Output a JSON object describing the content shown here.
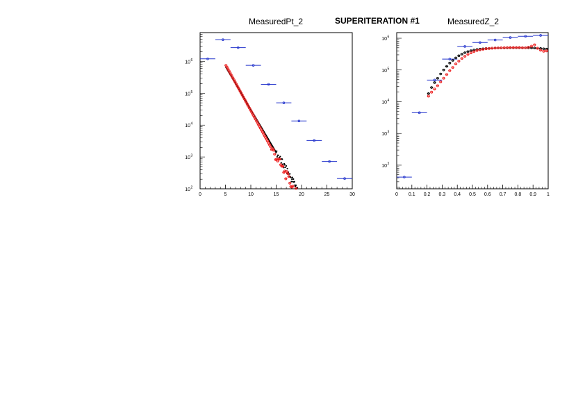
{
  "canvas": {
    "supertitle": "SUPERITERATION #1"
  },
  "colors": {
    "blue": "#2233cc",
    "black": "#000000",
    "red": "#ee2222"
  },
  "chart_data": [
    {
      "type": "scatter",
      "title": "MeasuredPt_2",
      "xlim": [
        0,
        30
      ],
      "ylim": [
        100,
        8000000
      ],
      "yscale": "log",
      "xticks": [
        "0",
        "5",
        "10",
        "15",
        "20",
        "25",
        "30"
      ],
      "yticks": [
        {
          "base": "10",
          "exp": "2",
          "v": 100
        },
        {
          "base": "10",
          "exp": "3",
          "v": 1000
        },
        {
          "base": "10",
          "exp": "4",
          "v": 10000
        },
        {
          "base": "10",
          "exp": "5",
          "v": 100000
        },
        {
          "base": "10",
          "exp": "6",
          "v": 1000000
        }
      ],
      "series": [
        {
          "color": "blue",
          "style": "errorx",
          "points": [
            [
              1.5,
              1200000,
              1.5
            ],
            [
              4.5,
              4800000,
              1.5
            ],
            [
              7.5,
              2700000,
              1.5
            ],
            [
              10.5,
              750000,
              1.5
            ],
            [
              13.5,
              190000,
              1.5
            ],
            [
              16.5,
              50000,
              1.5
            ],
            [
              19.5,
              13500,
              1.5
            ],
            [
              22.5,
              3300,
              1.5
            ],
            [
              25.5,
              720,
              1.5
            ],
            [
              28.5,
              210,
              1.5
            ]
          ]
        },
        {
          "color": "black",
          "style": "dots",
          "x_start": 5.1,
          "x_end": 20.0,
          "step": 0.1,
          "y_start": 650000,
          "slope": -0.27,
          "x_noise_from": 15,
          "noise": 0.12
        },
        {
          "color": "red",
          "style": "markers",
          "x_start": 5.1,
          "x_end": 19.8,
          "step": 0.2,
          "y_start": 750000,
          "slope": -0.29,
          "x_noise_from": 14,
          "noise": 0.15
        }
      ]
    },
    {
      "type": "scatter",
      "title": "MeasuredZ_2",
      "xlim": [
        0,
        1
      ],
      "ylim": [
        18,
        1500000
      ],
      "yscale": "log",
      "xticks": [
        "0",
        "0.1",
        "0.2",
        "0.3",
        "0.4",
        "0.5",
        "0.6",
        "0.7",
        "0.8",
        "0.9",
        "1"
      ],
      "yticks": [
        {
          "base": "10",
          "exp": "2",
          "v": 100
        },
        {
          "base": "10",
          "exp": "3",
          "v": 1000
        },
        {
          "base": "10",
          "exp": "4",
          "v": 10000
        },
        {
          "base": "10",
          "exp": "5",
          "v": 100000
        },
        {
          "base": "10",
          "exp": "6",
          "v": 1000000
        }
      ],
      "series": [
        {
          "color": "blue",
          "style": "errorx",
          "points": [
            [
              0.05,
              42,
              0.05
            ],
            [
              0.15,
              4500,
              0.05
            ],
            [
              0.25,
              48000,
              0.05
            ],
            [
              0.35,
              220000,
              0.05
            ],
            [
              0.45,
              550000,
              0.05
            ],
            [
              0.55,
              730000,
              0.05
            ],
            [
              0.65,
              880000,
              0.05
            ],
            [
              0.75,
              1050000,
              0.05
            ],
            [
              0.85,
              1150000,
              0.05
            ],
            [
              0.95,
              1230000,
              0.05
            ]
          ]
        },
        {
          "color": "black",
          "style": "errorx",
          "points": [
            [
              0.21,
              18000,
              0.01
            ],
            [
              0.23,
              28000,
              0.01
            ],
            [
              0.25,
              40000,
              0.01
            ],
            [
              0.27,
              55000,
              0.01
            ],
            [
              0.29,
              75000,
              0.01
            ],
            [
              0.31,
              100000,
              0.01
            ],
            [
              0.33,
              130000,
              0.01
            ],
            [
              0.35,
              165000,
              0.01
            ],
            [
              0.37,
              200000,
              0.01
            ],
            [
              0.39,
              240000,
              0.01
            ],
            [
              0.41,
              280000,
              0.01
            ],
            [
              0.43,
              315000,
              0.01
            ],
            [
              0.45,
              350000,
              0.01
            ],
            [
              0.47,
              380000,
              0.01
            ],
            [
              0.49,
              405000,
              0.01
            ],
            [
              0.51,
              425000,
              0.01
            ],
            [
              0.53,
              440000,
              0.01
            ],
            [
              0.55,
              455000,
              0.01
            ],
            [
              0.57,
              465000,
              0.01
            ],
            [
              0.59,
              475000,
              0.01
            ],
            [
              0.61,
              480000,
              0.01
            ],
            [
              0.63,
              485000,
              0.01
            ],
            [
              0.65,
              490000,
              0.01
            ],
            [
              0.67,
              492000,
              0.01
            ],
            [
              0.69,
              495000,
              0.01
            ],
            [
              0.71,
              497000,
              0.01
            ],
            [
              0.73,
              498000,
              0.01
            ],
            [
              0.75,
              500000,
              0.01
            ],
            [
              0.77,
              500000,
              0.01
            ],
            [
              0.79,
              500000,
              0.01
            ],
            [
              0.81,
              500000,
              0.01
            ],
            [
              0.83,
              500000,
              0.01
            ],
            [
              0.85,
              500000,
              0.01
            ],
            [
              0.87,
              498000,
              0.01
            ],
            [
              0.89,
              495000,
              0.01
            ],
            [
              0.91,
              490000,
              0.01
            ],
            [
              0.93,
              485000,
              0.01
            ],
            [
              0.95,
              475000,
              0.01
            ],
            [
              0.97,
              465000,
              0.01
            ],
            [
              0.99,
              455000,
              0.01
            ]
          ]
        },
        {
          "color": "red",
          "style": "markers",
          "points": [
            [
              0.21,
              15000
            ],
            [
              0.23,
              20000
            ],
            [
              0.25,
              25000
            ],
            [
              0.27,
              32000
            ],
            [
              0.29,
              42000
            ],
            [
              0.31,
              55000
            ],
            [
              0.33,
              72000
            ],
            [
              0.35,
              95000
            ],
            [
              0.37,
              120000
            ],
            [
              0.39,
              155000
            ],
            [
              0.41,
              190000
            ],
            [
              0.43,
              230000
            ],
            [
              0.45,
              270000
            ],
            [
              0.47,
              310000
            ],
            [
              0.49,
              345000
            ],
            [
              0.51,
              380000
            ],
            [
              0.53,
              410000
            ],
            [
              0.55,
              430000
            ],
            [
              0.57,
              450000
            ],
            [
              0.59,
              465000
            ],
            [
              0.61,
              475000
            ],
            [
              0.63,
              485000
            ],
            [
              0.65,
              490000
            ],
            [
              0.67,
              495000
            ],
            [
              0.69,
              498000
            ],
            [
              0.71,
              500000
            ],
            [
              0.73,
              502000
            ],
            [
              0.75,
              505000
            ],
            [
              0.77,
              505000
            ],
            [
              0.79,
              505000
            ],
            [
              0.81,
              505000
            ],
            [
              0.83,
              500000
            ],
            [
              0.85,
              498000
            ],
            [
              0.87,
              520000
            ],
            [
              0.89,
              560000
            ],
            [
              0.91,
              620000
            ],
            [
              0.93,
              480000
            ],
            [
              0.95,
              420000
            ],
            [
              0.97,
              390000
            ],
            [
              0.99,
              400000
            ]
          ]
        }
      ]
    }
  ]
}
